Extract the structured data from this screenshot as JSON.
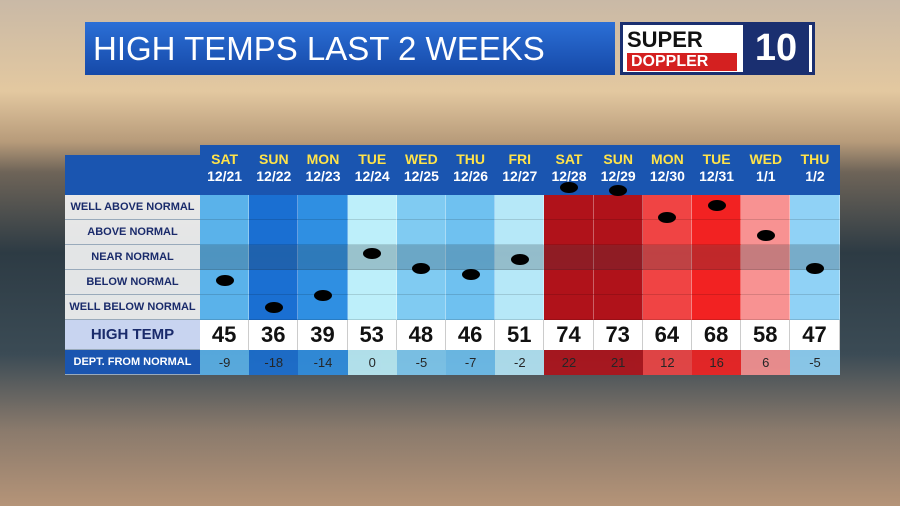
{
  "header": {
    "title": "HIGH TEMPS LAST 2 WEEKS"
  },
  "logo": {
    "line1": "SUPER",
    "line2": "DOPPLER",
    "number": "10"
  },
  "table": {
    "row_labels": [
      "WELL ABOVE NORMAL",
      "ABOVE NORMAL",
      "NEAR NORMAL",
      "BELOW NORMAL",
      "WELL BELOW NORMAL"
    ],
    "high_label": "HIGH TEMP",
    "dept_label": "DEPT. FROM NORMAL",
    "days": [
      {
        "day": "SAT",
        "date": "12/21",
        "high": 45,
        "dept": -9,
        "color": "#5ab2ea"
      },
      {
        "day": "SUN",
        "date": "12/22",
        "high": 36,
        "dept": -18,
        "color": "#1a6fd2"
      },
      {
        "day": "MON",
        "date": "12/23",
        "high": 39,
        "dept": -14,
        "color": "#2f8fe2"
      },
      {
        "day": "TUE",
        "date": "12/24",
        "high": 53,
        "dept": 0,
        "color": "#bdeffa"
      },
      {
        "day": "WED",
        "date": "12/25",
        "high": 48,
        "dept": -5,
        "color": "#80cbf2"
      },
      {
        "day": "THU",
        "date": "12/26",
        "high": 46,
        "dept": -7,
        "color": "#6fc1f0"
      },
      {
        "day": "FRI",
        "date": "12/27",
        "high": 51,
        "dept": -2,
        "color": "#b6e8f8"
      },
      {
        "day": "SAT",
        "date": "12/28",
        "high": 74,
        "dept": 22,
        "color": "#b0121a"
      },
      {
        "day": "SUN",
        "date": "12/29",
        "high": 73,
        "dept": 21,
        "color": "#b0121a"
      },
      {
        "day": "MON",
        "date": "12/30",
        "high": 64,
        "dept": 12,
        "color": "#f04444"
      },
      {
        "day": "TUE",
        "date": "12/31",
        "high": 68,
        "dept": 16,
        "color": "#f22222"
      },
      {
        "day": "WED",
        "date": "1/1",
        "high": 58,
        "dept": 6,
        "color": "#f89292"
      },
      {
        "day": "THU",
        "date": "1/2",
        "high": 47,
        "dept": -5,
        "color": "#90d2f6"
      }
    ]
  }
}
